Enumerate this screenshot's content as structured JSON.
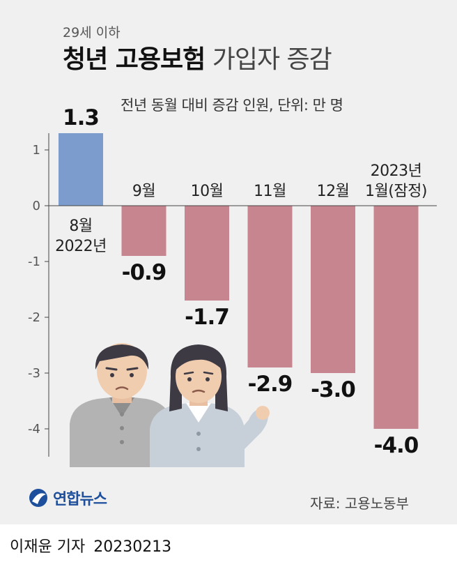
{
  "header": {
    "pretitle": "29세 이하",
    "title_bold": "청년 고용보험",
    "title_light": "가입자 증감",
    "subtitle": "전년 동월 대비 증감 인원, 단위: 만 명"
  },
  "colors": {
    "positive_bar": "#7b9ccc",
    "negative_bar": "#c7858f",
    "background": "#f0f0f0"
  },
  "chart_data": {
    "type": "bar",
    "categories": [
      [
        "8월",
        "2022년"
      ],
      [
        "9월"
      ],
      [
        "10월"
      ],
      [
        "11월"
      ],
      [
        "12월"
      ],
      [
        "2023년",
        "1월(잠정)"
      ]
    ],
    "values": [
      1.3,
      -0.9,
      -1.7,
      -2.9,
      -3.0,
      -4.0
    ],
    "value_labels": [
      "1.3",
      "-0.9",
      "-1.7",
      "-2.9",
      "-3.0",
      "-4.0"
    ],
    "y_ticks": [
      1,
      0,
      -1,
      -2,
      -3,
      -4
    ],
    "y_tick_labels": [
      "1",
      "0",
      "-1",
      "-2",
      "-3",
      "-4"
    ],
    "ylim": [
      -4.5,
      1.3
    ],
    "ylabel": "",
    "xlabel": "",
    "grid": false,
    "legend": "none"
  },
  "footer": {
    "logo_text": "연합뉴스",
    "source": "자료: 고용노동부",
    "reporter": "이재윤 기자",
    "date": "20230213"
  },
  "icons": [
    "yonhap-logo-icon",
    "young-man-illustration",
    "young-woman-illustration"
  ]
}
